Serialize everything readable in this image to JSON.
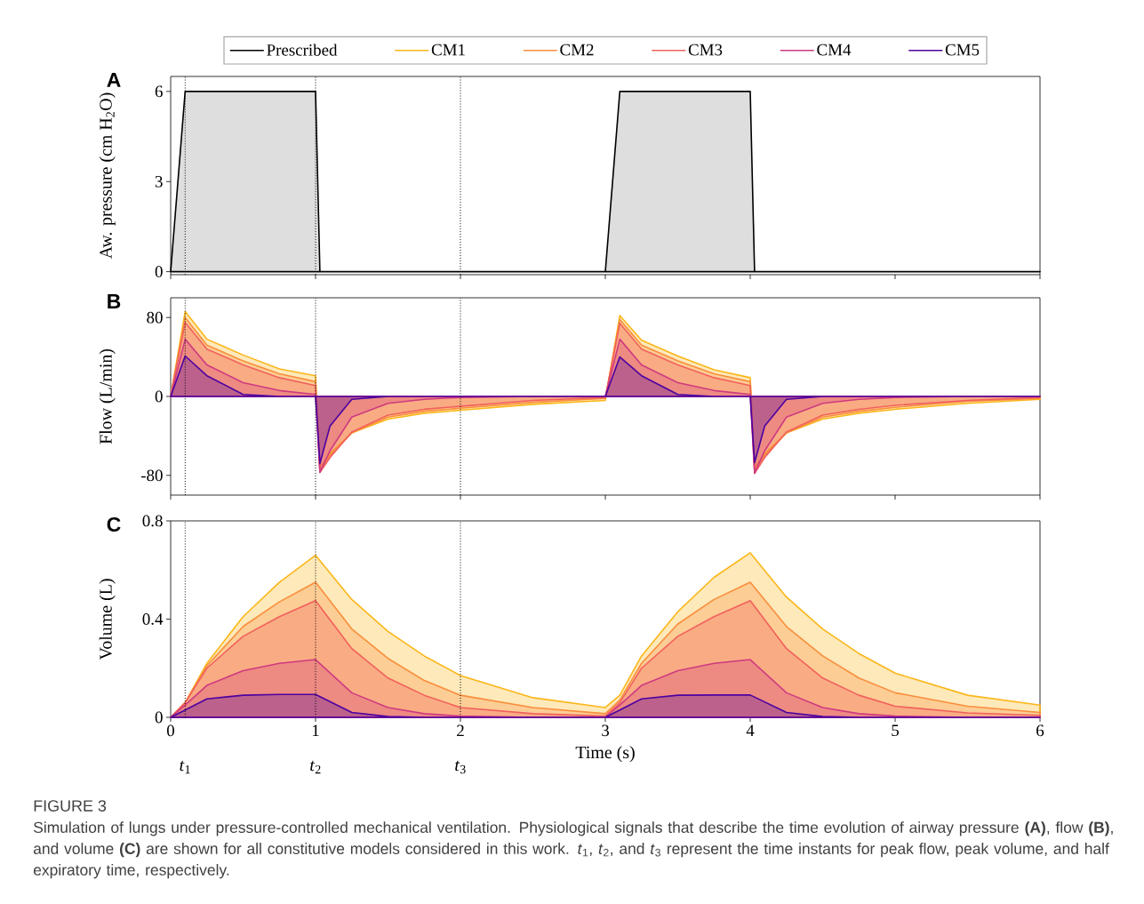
{
  "chart_data": [
    {
      "type": "area",
      "title": "A",
      "ylabel": "Aw. pressure (cm H$_{2}$O)",
      "x": [
        0,
        0.1,
        1,
        1.03,
        3,
        3.1,
        4,
        4.03,
        6
      ],
      "legend": "top",
      "tick_labels": "y",
      "series": [
        {
          "name": "Prescribed",
          "color": "#000000",
          "values": [
            0,
            6,
            6,
            0,
            0,
            6,
            6,
            0,
            0
          ]
        }
      ],
      "xlim": [
        0,
        6
      ],
      "xticks": [
        0,
        1,
        2,
        3,
        4,
        5,
        6
      ],
      "ylim": [
        -0.1,
        6.5
      ],
      "yticks": [
        0,
        3,
        6
      ],
      "ref_lines": [
        {
          "axis": "x",
          "value": 0.1,
          "color": "#000000",
          "line_style": "dotted"
        },
        {
          "axis": "x",
          "value": 1,
          "color": "#000000",
          "line_style": "dotted"
        },
        {
          "axis": "x",
          "value": 2,
          "color": "#000000",
          "line_style": "dotted"
        }
      ]
    },
    {
      "type": "area",
      "title": "B",
      "ylabel": "Flow (L/min)",
      "tick_labels": "y",
      "x": [
        0,
        0.1,
        0.25,
        0.5,
        0.75,
        1,
        1.03,
        1.1,
        1.25,
        1.5,
        1.75,
        2,
        2.5,
        3,
        3.1,
        3.25,
        3.5,
        3.75,
        4,
        4.03,
        4.1,
        4.25,
        4.5,
        4.75,
        5,
        5.5,
        6
      ],
      "series": [
        {
          "name": "CM1",
          "color": "#fbb61a",
          "values": [
            0,
            86,
            58,
            42,
            28,
            21,
            -72,
            -58,
            -37,
            -23,
            -17,
            -14,
            -8,
            -4,
            82,
            57,
            41,
            27,
            19,
            -72,
            -58,
            -37,
            -23,
            -17,
            -13,
            -7,
            -3
          ]
        },
        {
          "name": "CM2",
          "color": "#f98e3d",
          "values": [
            0,
            80,
            52,
            36,
            23,
            15,
            -75,
            -60,
            -37,
            -21,
            -15,
            -12,
            -6,
            -2,
            78,
            52,
            36,
            23,
            15,
            -75,
            -60,
            -37,
            -21,
            -15,
            -11,
            -5,
            -2
          ]
        },
        {
          "name": "CM3",
          "color": "#f1605d",
          "values": [
            0,
            75,
            48,
            32,
            19,
            11,
            -77,
            -62,
            -36,
            -19,
            -13,
            -10,
            -4,
            -1,
            74,
            48,
            32,
            19,
            11,
            -78,
            -62,
            -36,
            -19,
            -13,
            -9,
            -4,
            -1
          ]
        },
        {
          "name": "CM4",
          "color": "#cf3a80",
          "values": [
            0,
            58,
            32,
            14,
            6,
            2,
            -77,
            -55,
            -21,
            -7,
            -3,
            -1,
            0,
            0,
            58,
            32,
            14,
            6,
            2,
            -78,
            -55,
            -21,
            -7,
            -3,
            -1,
            0,
            0
          ]
        },
        {
          "name": "CM5",
          "color": "#4c02a1",
          "values": [
            0,
            41,
            21,
            2,
            0,
            0,
            -68,
            -30,
            -3,
            0,
            0,
            0,
            0,
            0,
            40,
            21,
            2,
            0,
            0,
            -67,
            -30,
            -3,
            0,
            0,
            0,
            0,
            0
          ]
        }
      ],
      "xlim": [
        0,
        6
      ],
      "xticks": [
        0,
        1,
        2,
        3,
        4,
        5,
        6
      ],
      "ylim": [
        -100,
        100
      ],
      "yticks": [
        -80,
        0,
        80
      ],
      "ref_lines": [
        {
          "axis": "x",
          "value": 0.1,
          "color": "#000000",
          "line_style": "dotted"
        },
        {
          "axis": "x",
          "value": 1,
          "color": "#000000",
          "line_style": "dotted"
        },
        {
          "axis": "x",
          "value": 2,
          "color": "#000000",
          "line_style": "dotted"
        }
      ]
    },
    {
      "type": "area",
      "title": "C",
      "ylabel": "Volume (L)",
      "xlabel": "Time (s)",
      "x": [
        0,
        0.1,
        0.25,
        0.5,
        0.75,
        1,
        1.25,
        1.5,
        1.75,
        2,
        2.5,
        3,
        3.1,
        3.25,
        3.5,
        3.75,
        4,
        4.25,
        4.5,
        4.75,
        5,
        5.5,
        6
      ],
      "series": [
        {
          "color": "#fbb61a",
          "values": [
            0,
            0.06,
            0.22,
            0.41,
            0.55,
            0.66,
            0.48,
            0.35,
            0.25,
            0.17,
            0.08,
            0.04,
            0.09,
            0.25,
            0.43,
            0.57,
            0.67,
            0.49,
            0.36,
            0.26,
            0.18,
            0.09,
            0.05
          ]
        },
        {
          "color": "#f98e3d",
          "values": [
            0,
            0.06,
            0.21,
            0.37,
            0.47,
            0.55,
            0.36,
            0.24,
            0.15,
            0.09,
            0.04,
            0.015,
            0.07,
            0.22,
            0.38,
            0.48,
            0.55,
            0.37,
            0.25,
            0.16,
            0.1,
            0.045,
            0.02
          ]
        },
        {
          "color": "#f1605d",
          "values": [
            0,
            0.06,
            0.2,
            0.33,
            0.41,
            0.475,
            0.28,
            0.16,
            0.09,
            0.04,
            0.015,
            0.005,
            0.06,
            0.2,
            0.33,
            0.41,
            0.475,
            0.28,
            0.16,
            0.09,
            0.045,
            0.018,
            0.008
          ]
        },
        {
          "color": "#cf3a80",
          "values": [
            0,
            0.05,
            0.13,
            0.19,
            0.22,
            0.235,
            0.1,
            0.04,
            0.015,
            0.005,
            0,
            0,
            0.05,
            0.13,
            0.19,
            0.22,
            0.235,
            0.1,
            0.04,
            0.015,
            0.005,
            0,
            0
          ]
        },
        {
          "color": "#4c02a1",
          "values": [
            0,
            0.03,
            0.075,
            0.09,
            0.093,
            0.093,
            0.02,
            0.003,
            0,
            0,
            0,
            0,
            0.03,
            0.075,
            0.09,
            0.091,
            0.091,
            0.02,
            0.003,
            0,
            0,
            0,
            0
          ]
        }
      ],
      "xlim": [
        0,
        6
      ],
      "xticks": [
        0,
        1,
        2,
        3,
        4,
        5,
        6
      ],
      "ylim": [
        0,
        0.8
      ],
      "yticks": [
        0,
        0.4,
        0.8
      ],
      "ref_lines": [
        {
          "axis": "x",
          "value": 0.1,
          "label": "*t*$_{1}$",
          "color": "#000000",
          "line_style": "dotted"
        },
        {
          "axis": "x",
          "value": 1,
          "label": "*t*$_{2}$",
          "color": "#000000",
          "line_style": "dotted"
        },
        {
          "axis": "x",
          "value": 2,
          "label": "*t*$_{3}$",
          "color": "#000000",
          "line_style": "dotted"
        }
      ],
      "annotations": [
        "FIGURE 3",
        "Simulation of lungs under pressure-controlled mechanical ventilation. Physiological signals that describe the time evolution of airway pressure **(A)**, flow **(B)**, and volume **(C)** are shown for all constitutive models considered in this work. *t*$_{1}$, *t*$_{2}$, and *t*$_{3}$ represent the time instants for peak flow, peak volume, and half expiratory time, respectively."
      ]
    }
  ]
}
